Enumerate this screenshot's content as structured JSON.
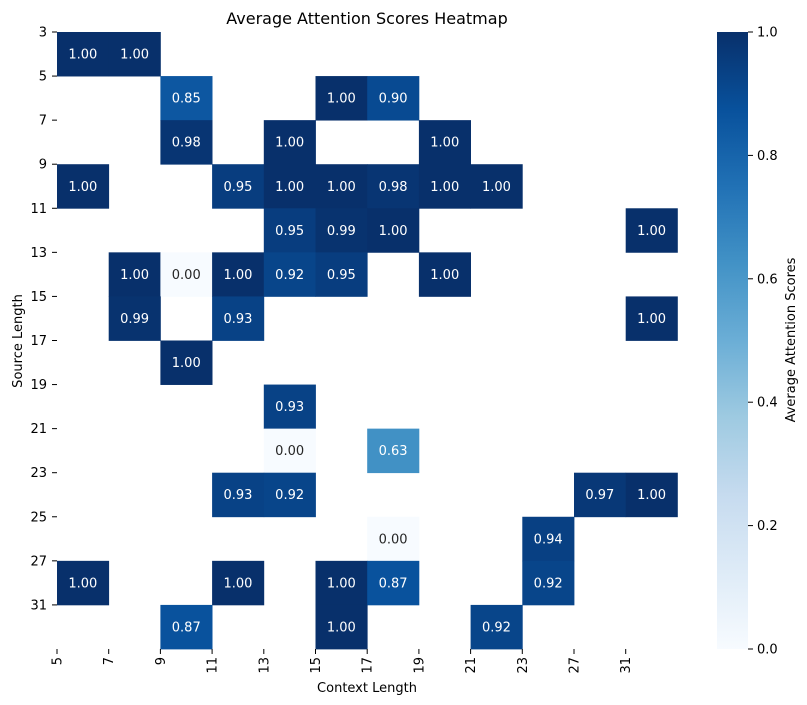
{
  "chart_data": {
    "type": "heatmap",
    "title": "Average Attention Scores Heatmap",
    "xlabel": "Context Length",
    "ylabel": "Source Length",
    "x_tick_labels": [
      "5",
      "7",
      "9",
      "11",
      "13",
      "15",
      "17",
      "19",
      "21",
      "23",
      "27",
      "31"
    ],
    "y_tick_labels": [
      "3",
      "5",
      "7",
      "9",
      "11",
      "13",
      "15",
      "17",
      "19",
      "21",
      "23",
      "25",
      "27",
      "31"
    ],
    "n_cols": 12,
    "n_rows": 14,
    "cells": [
      {
        "row": 0,
        "col": 0,
        "value": 1.0,
        "label": "1.00"
      },
      {
        "row": 0,
        "col": 1,
        "value": 1.0,
        "label": "1.00"
      },
      {
        "row": 1,
        "col": 2,
        "value": 0.85,
        "label": "0.85"
      },
      {
        "row": 1,
        "col": 5,
        "value": 1.0,
        "label": "1.00"
      },
      {
        "row": 1,
        "col": 6,
        "value": 0.9,
        "label": "0.90"
      },
      {
        "row": 2,
        "col": 2,
        "value": 0.98,
        "label": "0.98"
      },
      {
        "row": 2,
        "col": 4,
        "value": 1.0,
        "label": "1.00"
      },
      {
        "row": 2,
        "col": 7,
        "value": 1.0,
        "label": "1.00"
      },
      {
        "row": 3,
        "col": 0,
        "value": 1.0,
        "label": "1.00"
      },
      {
        "row": 3,
        "col": 3,
        "value": 0.95,
        "label": "0.95"
      },
      {
        "row": 3,
        "col": 4,
        "value": 1.0,
        "label": "1.00"
      },
      {
        "row": 3,
        "col": 5,
        "value": 1.0,
        "label": "1.00"
      },
      {
        "row": 3,
        "col": 6,
        "value": 0.98,
        "label": "0.98"
      },
      {
        "row": 3,
        "col": 7,
        "value": 1.0,
        "label": "1.00"
      },
      {
        "row": 3,
        "col": 8,
        "value": 1.0,
        "label": "1.00"
      },
      {
        "row": 4,
        "col": 4,
        "value": 0.95,
        "label": "0.95"
      },
      {
        "row": 4,
        "col": 5,
        "value": 0.99,
        "label": "0.99"
      },
      {
        "row": 4,
        "col": 6,
        "value": 1.0,
        "label": "1.00"
      },
      {
        "row": 4,
        "col": 11,
        "value": 1.0,
        "label": "1.00"
      },
      {
        "row": 5,
        "col": 1,
        "value": 1.0,
        "label": "1.00"
      },
      {
        "row": 5,
        "col": 2,
        "value": 0.0,
        "label": "0.00"
      },
      {
        "row": 5,
        "col": 3,
        "value": 1.0,
        "label": "1.00"
      },
      {
        "row": 5,
        "col": 4,
        "value": 0.92,
        "label": "0.92"
      },
      {
        "row": 5,
        "col": 5,
        "value": 0.95,
        "label": "0.95"
      },
      {
        "row": 5,
        "col": 7,
        "value": 1.0,
        "label": "1.00"
      },
      {
        "row": 6,
        "col": 1,
        "value": 0.99,
        "label": "0.99"
      },
      {
        "row": 6,
        "col": 3,
        "value": 0.93,
        "label": "0.93"
      },
      {
        "row": 6,
        "col": 11,
        "value": 1.0,
        "label": "1.00"
      },
      {
        "row": 7,
        "col": 2,
        "value": 1.0,
        "label": "1.00"
      },
      {
        "row": 8,
        "col": 4,
        "value": 0.93,
        "label": "0.93"
      },
      {
        "row": 9,
        "col": 4,
        "value": 0.0,
        "label": "0.00"
      },
      {
        "row": 9,
        "col": 6,
        "value": 0.63,
        "label": "0.63"
      },
      {
        "row": 10,
        "col": 3,
        "value": 0.93,
        "label": "0.93"
      },
      {
        "row": 10,
        "col": 4,
        "value": 0.92,
        "label": "0.92"
      },
      {
        "row": 10,
        "col": 10,
        "value": 0.97,
        "label": "0.97"
      },
      {
        "row": 10,
        "col": 11,
        "value": 1.0,
        "label": "1.00"
      },
      {
        "row": 11,
        "col": 6,
        "value": 0.0,
        "label": "0.00"
      },
      {
        "row": 11,
        "col": 9,
        "value": 0.94,
        "label": "0.94"
      },
      {
        "row": 12,
        "col": 0,
        "value": 1.0,
        "label": "1.00"
      },
      {
        "row": 12,
        "col": 3,
        "value": 1.0,
        "label": "1.00"
      },
      {
        "row": 12,
        "col": 5,
        "value": 1.0,
        "label": "1.00"
      },
      {
        "row": 12,
        "col": 6,
        "value": 0.87,
        "label": "0.87"
      },
      {
        "row": 12,
        "col": 9,
        "value": 0.92,
        "label": "0.92"
      },
      {
        "row": 13,
        "col": 2,
        "value": 0.87,
        "label": "0.87"
      },
      {
        "row": 13,
        "col": 5,
        "value": 1.0,
        "label": "1.00"
      },
      {
        "row": 13,
        "col": 8,
        "value": 0.92,
        "label": "0.92"
      }
    ],
    "colorbar": {
      "label": "Average Attention Scores",
      "vmin": 0.0,
      "vmax": 1.0,
      "ticks": [
        "0.0",
        "0.2",
        "0.4",
        "0.6",
        "0.8",
        "1.0"
      ],
      "colormap": "Blues"
    },
    "colors": {
      "low": "#f7fbff",
      "high": "#08306b",
      "text_dark_cell": "#ffffff",
      "text_light_cell": "#262626"
    }
  }
}
